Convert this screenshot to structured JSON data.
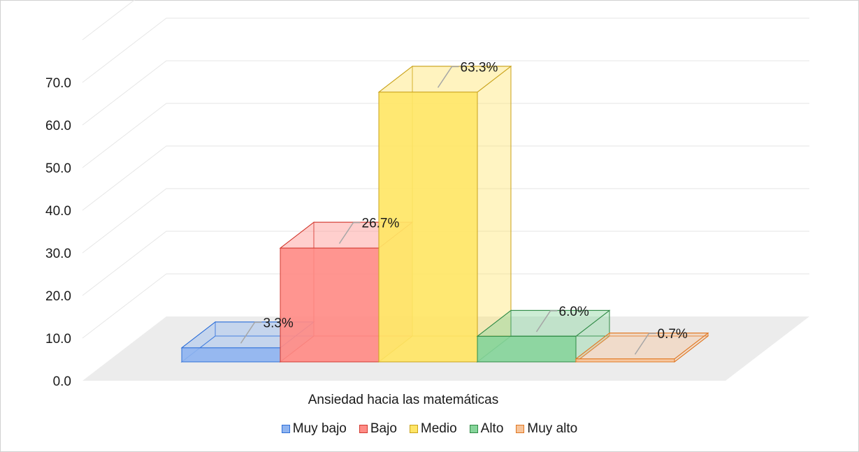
{
  "chart_data": {
    "type": "bar",
    "style": "3d-clustered",
    "categories": [
      "Ansiedad hacia las matemáticas"
    ],
    "series": [
      {
        "name": "Muy bajo",
        "values": [
          3.3
        ],
        "label": "3.3%",
        "color": "#8fb4f0",
        "edge": "#2e6fd8"
      },
      {
        "name": "Bajo",
        "values": [
          26.7
        ],
        "label": "26.7%",
        "color": "#ff8c86",
        "edge": "#d23a30"
      },
      {
        "name": "Medio",
        "values": [
          63.3
        ],
        "label": "63.3%",
        "color": "#ffe566",
        "edge": "#c9a21a"
      },
      {
        "name": "Alto",
        "values": [
          6.0
        ],
        "label": "6.0%",
        "color": "#86d49a",
        "edge": "#2f8a45"
      },
      {
        "name": "Muy alto",
        "values": [
          0.7
        ],
        "label": "0.7%",
        "color": "#f7c49a",
        "edge": "#e07722"
      }
    ],
    "ylim": [
      0,
      70
    ],
    "yticks": [
      "0.0",
      "10.0",
      "20.0",
      "30.0",
      "40.0",
      "50.0",
      "60.0",
      "70.0"
    ],
    "grid": true,
    "legend_position": "bottom"
  }
}
